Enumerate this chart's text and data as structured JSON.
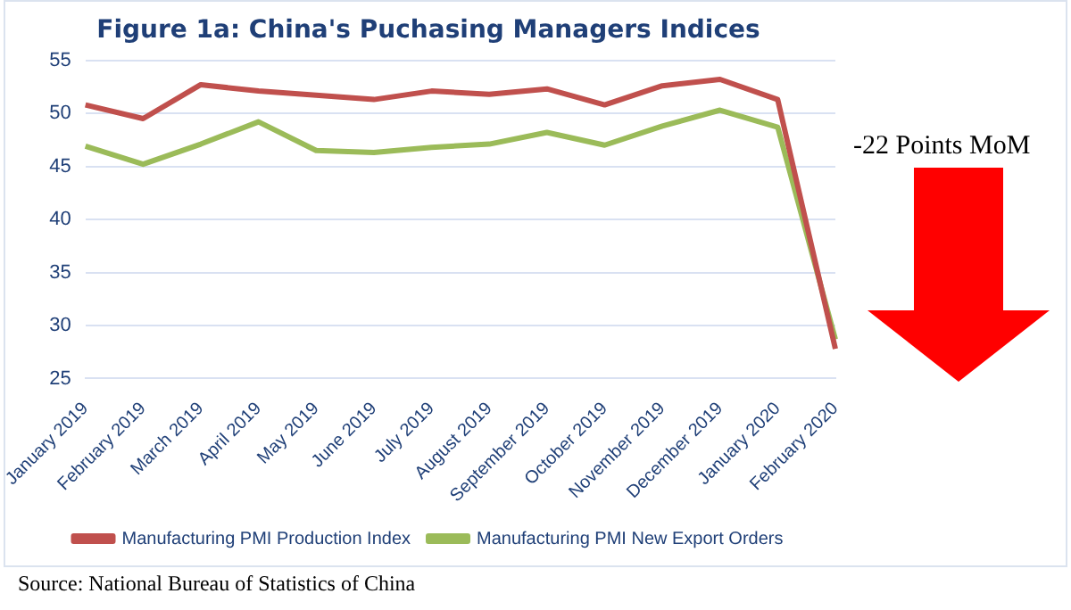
{
  "chart_data": {
    "type": "line",
    "title": "Figure 1a: China's Puchasing Managers Indices",
    "categories": [
      "January 2019",
      "February 2019",
      "March 2019",
      "April 2019",
      "May 2019",
      "June 2019",
      "July 2019",
      "August 2019",
      "September 2019",
      "October 2019",
      "November 2019",
      "December 2019",
      "January 2020",
      "February 2020"
    ],
    "series": [
      {
        "name": "Manufacturing PMI Production Index",
        "color": "#c0504d",
        "values": [
          50.8,
          49.5,
          52.7,
          52.1,
          51.7,
          51.3,
          52.1,
          51.8,
          52.3,
          50.8,
          52.6,
          53.2,
          51.3,
          27.8
        ]
      },
      {
        "name": "Manufacturing PMI New Export Orders",
        "color": "#9bbb59",
        "values": [
          46.9,
          45.2,
          47.1,
          49.2,
          46.5,
          46.3,
          46.8,
          47.1,
          48.2,
          47.0,
          48.8,
          50.3,
          48.7,
          28.7
        ]
      }
    ],
    "ylim": [
      25,
      55
    ],
    "yticks": [
      25,
      30,
      35,
      40,
      45,
      50,
      55
    ],
    "grid": "y",
    "legend": "bottom",
    "marker": "none",
    "annotations": [
      "-22 Points MoM",
      "Source: National Bureau of Statistics of China"
    ]
  }
}
